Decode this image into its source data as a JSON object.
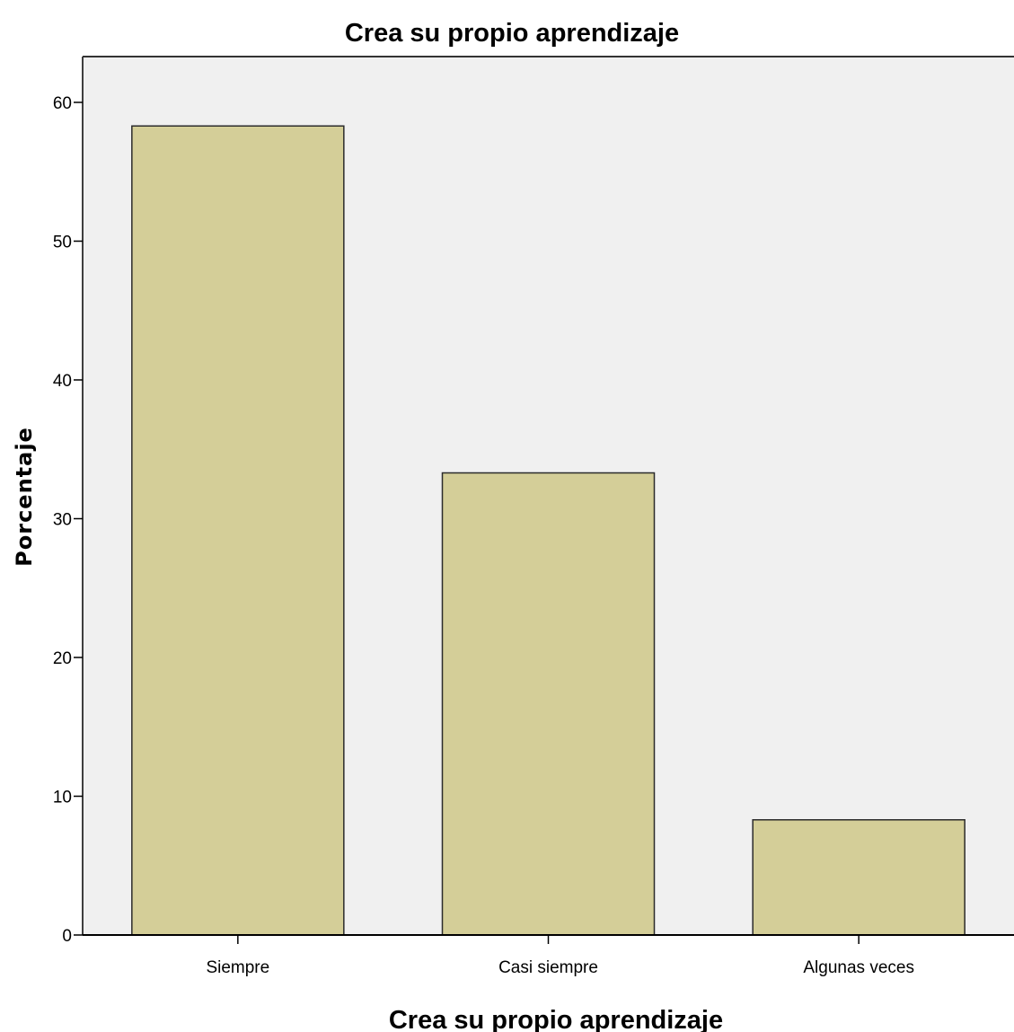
{
  "chart_data": {
    "type": "bar",
    "title": "Crea su propio aprendizaje",
    "xlabel": "Crea su propio aprendizaje",
    "ylabel": "Porcentaje",
    "categories": [
      "Siempre",
      "Casi siempre",
      "Algunas veces"
    ],
    "values": [
      58.3,
      33.3,
      8.3
    ],
    "ylim": [
      0,
      63.3
    ],
    "yticks": [
      0,
      10,
      20,
      30,
      40,
      50,
      60
    ],
    "ytick_labels": [
      "0",
      "10",
      "20",
      "30",
      "40",
      "50",
      "60"
    ],
    "grid": false,
    "legend": "none",
    "colors": {
      "bar_fill": "#d4ce98",
      "bar_stroke": "#2b2b2b",
      "plot_background": "#f0f0f0",
      "axis": "#000000"
    }
  }
}
